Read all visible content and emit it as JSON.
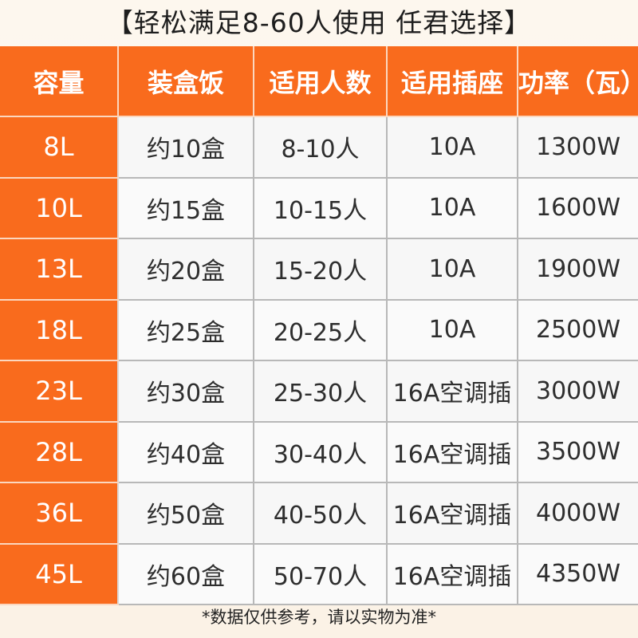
{
  "title": "【轻松满足8-60人使用 任君选择】",
  "table": {
    "headers": [
      "容量",
      "装盒饭",
      "适用人数",
      "适用插座",
      "功率（瓦）"
    ],
    "rows": [
      [
        "8L",
        "约10盒",
        "8-10人",
        "10A",
        "1300W"
      ],
      [
        "10L",
        "约15盒",
        "10-15人",
        "10A",
        "1600W"
      ],
      [
        "13L",
        "约20盒",
        "15-20人",
        "10A",
        "1900W"
      ],
      [
        "18L",
        "约25盒",
        "20-25人",
        "10A",
        "2500W"
      ],
      [
        "23L",
        "约30盒",
        "25-30人",
        "16A空调插",
        "3000W"
      ],
      [
        "28L",
        "约40盒",
        "30-40人",
        "16A空调插",
        "3500W"
      ],
      [
        "36L",
        "约50盒",
        "40-50人",
        "16A空调插",
        "4000W"
      ],
      [
        "45L",
        "约60盒",
        "50-70人",
        "16A空调插",
        "4350W"
      ]
    ]
  },
  "footer": "*数据仅供参考，请以实物为准*",
  "colors": {
    "accent": "#f96b1d",
    "cell_bg": "#fafafa",
    "page_bg": "#fdf6ec"
  }
}
